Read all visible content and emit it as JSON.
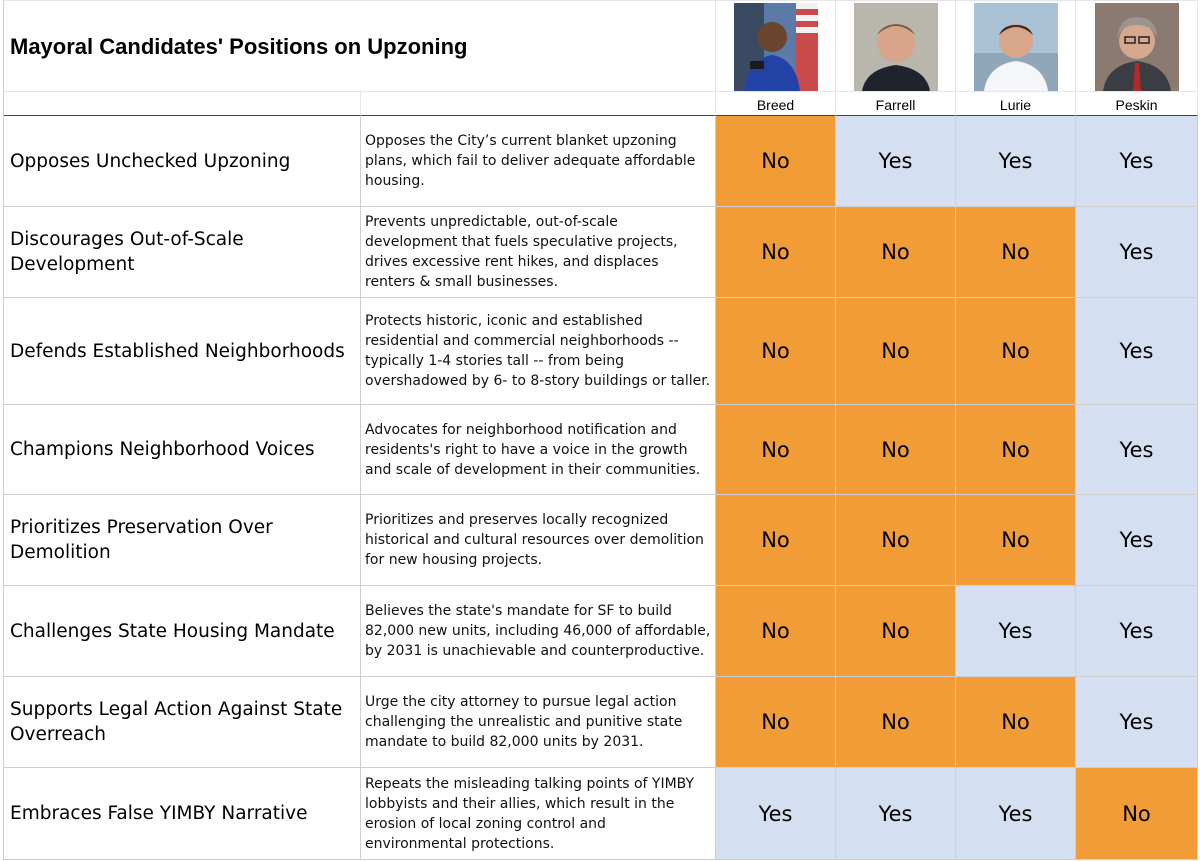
{
  "table": {
    "title": "Mayoral Candidates' Positions on Upzoning",
    "candidates": [
      {
        "name": "Breed",
        "photo": "breed-portrait"
      },
      {
        "name": "Farrell",
        "photo": "farrell-portrait"
      },
      {
        "name": "Lurie",
        "photo": "lurie-portrait"
      },
      {
        "name": "Peskin",
        "photo": "peskin-portrait"
      }
    ],
    "rows": [
      {
        "label": "Opposes Unchecked Upzoning",
        "description": "Opposes the City’s current blanket upzoning plans, which fail to deliver adequate affordable housing.",
        "answers": [
          "No",
          "Yes",
          "Yes",
          "Yes"
        ]
      },
      {
        "label": "Discourages Out-of-Scale Development",
        "description": "Prevents unpredictable, out-of-scale development that fuels speculative projects, drives excessive rent hikes, and displaces renters & small businesses.",
        "answers": [
          "No",
          "No",
          "No",
          "Yes"
        ]
      },
      {
        "label": "Defends Established Neighborhoods",
        "description": "Protects historic, iconic and established residential and commercial neighborhoods -- typically 1-4 stories tall -- from being overshadowed by 6- to 8-story buildings or taller.",
        "answers": [
          "No",
          "No",
          "No",
          "Yes"
        ]
      },
      {
        "label": "Champions Neighborhood Voices",
        "description": "Advocates for neighborhood notification and residents's right to have a voice in the growth and scale of development in their communities.",
        "answers": [
          "No",
          "No",
          "No",
          "Yes"
        ]
      },
      {
        "label": "Prioritizes Preservation Over Demolition",
        "description": "Prioritizes and preserves locally recognized historical and cultural resources over demolition for new housing projects.",
        "answers": [
          "No",
          "No",
          "No",
          "Yes"
        ]
      },
      {
        "label": "Challenges State Housing Mandate",
        "description": "Believes the state's mandate for SF to build 82,000 new units, including 46,000 of affordable, by 2031 is unachievable and counterproductive.",
        "answers": [
          "No",
          "No",
          "Yes",
          "Yes"
        ]
      },
      {
        "label": "Supports Legal Action Against State Overreach",
        "description": "Urge the city attorney to pursue legal action challenging the unrealistic and punitive state mandate to build 82,000 units by 2031.",
        "answers": [
          "No",
          "No",
          "No",
          "Yes"
        ]
      },
      {
        "label": "Embraces False YIMBY Narrative",
        "description": "Repeats the misleading talking points of YIMBY lobbyists and their allies, which result in the erosion of local zoning control and environmental protections.",
        "answers": [
          "Yes",
          "Yes",
          "Yes",
          "No"
        ]
      }
    ],
    "colors": {
      "no": "#f29c37",
      "yes": "#d4e0f1",
      "grid": "#cfcfcf"
    }
  }
}
